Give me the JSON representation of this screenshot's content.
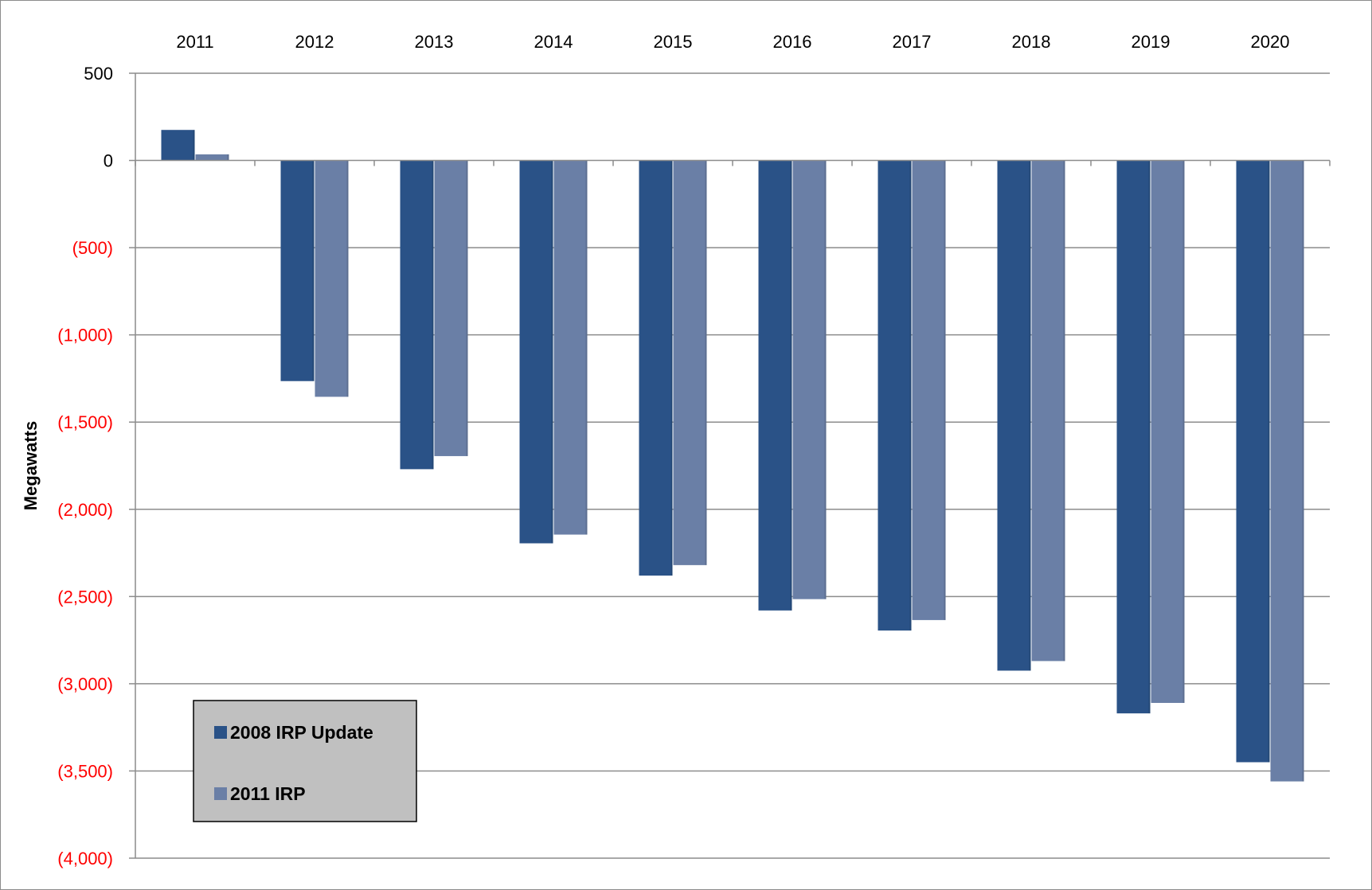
{
  "chart_data": {
    "type": "bar",
    "ylabel": "Megawatts",
    "categories": [
      "2011",
      "2012",
      "2013",
      "2014",
      "2015",
      "2016",
      "2017",
      "2018",
      "2019",
      "2020"
    ],
    "series": [
      {
        "name": "2008 IRP Update",
        "values": [
          175,
          -1265,
          -1770,
          -2195,
          -2380,
          -2580,
          -2695,
          -2925,
          -3170,
          -3450
        ]
      },
      {
        "name": "2011 IRP",
        "values": [
          35,
          -1355,
          -1695,
          -2145,
          -2320,
          -2515,
          -2635,
          -2870,
          -3110,
          -3560
        ]
      }
    ],
    "ylim": [
      -4000,
      500
    ],
    "y_ticks": [
      500,
      0,
      -500,
      -1000,
      -1500,
      -2000,
      -2500,
      -3000,
      -3500,
      -4000
    ],
    "y_tick_labels": [
      "500",
      "0",
      "(500)",
      "(1,000)",
      "(1,500)",
      "(2,000)",
      "(2,500)",
      "(3,000)",
      "(3,500)",
      "(4,000)"
    ],
    "x_axis_position": "top",
    "grid": true,
    "legend_position": "bottom-left",
    "colors": {
      "series_0": "#2a5287",
      "series_1": "#6a7fa6",
      "positive_tick": "#000000",
      "negative_tick": "#ff0000",
      "gridline": "#8c8c8c",
      "legend_bg": "#c0c0c0"
    }
  }
}
